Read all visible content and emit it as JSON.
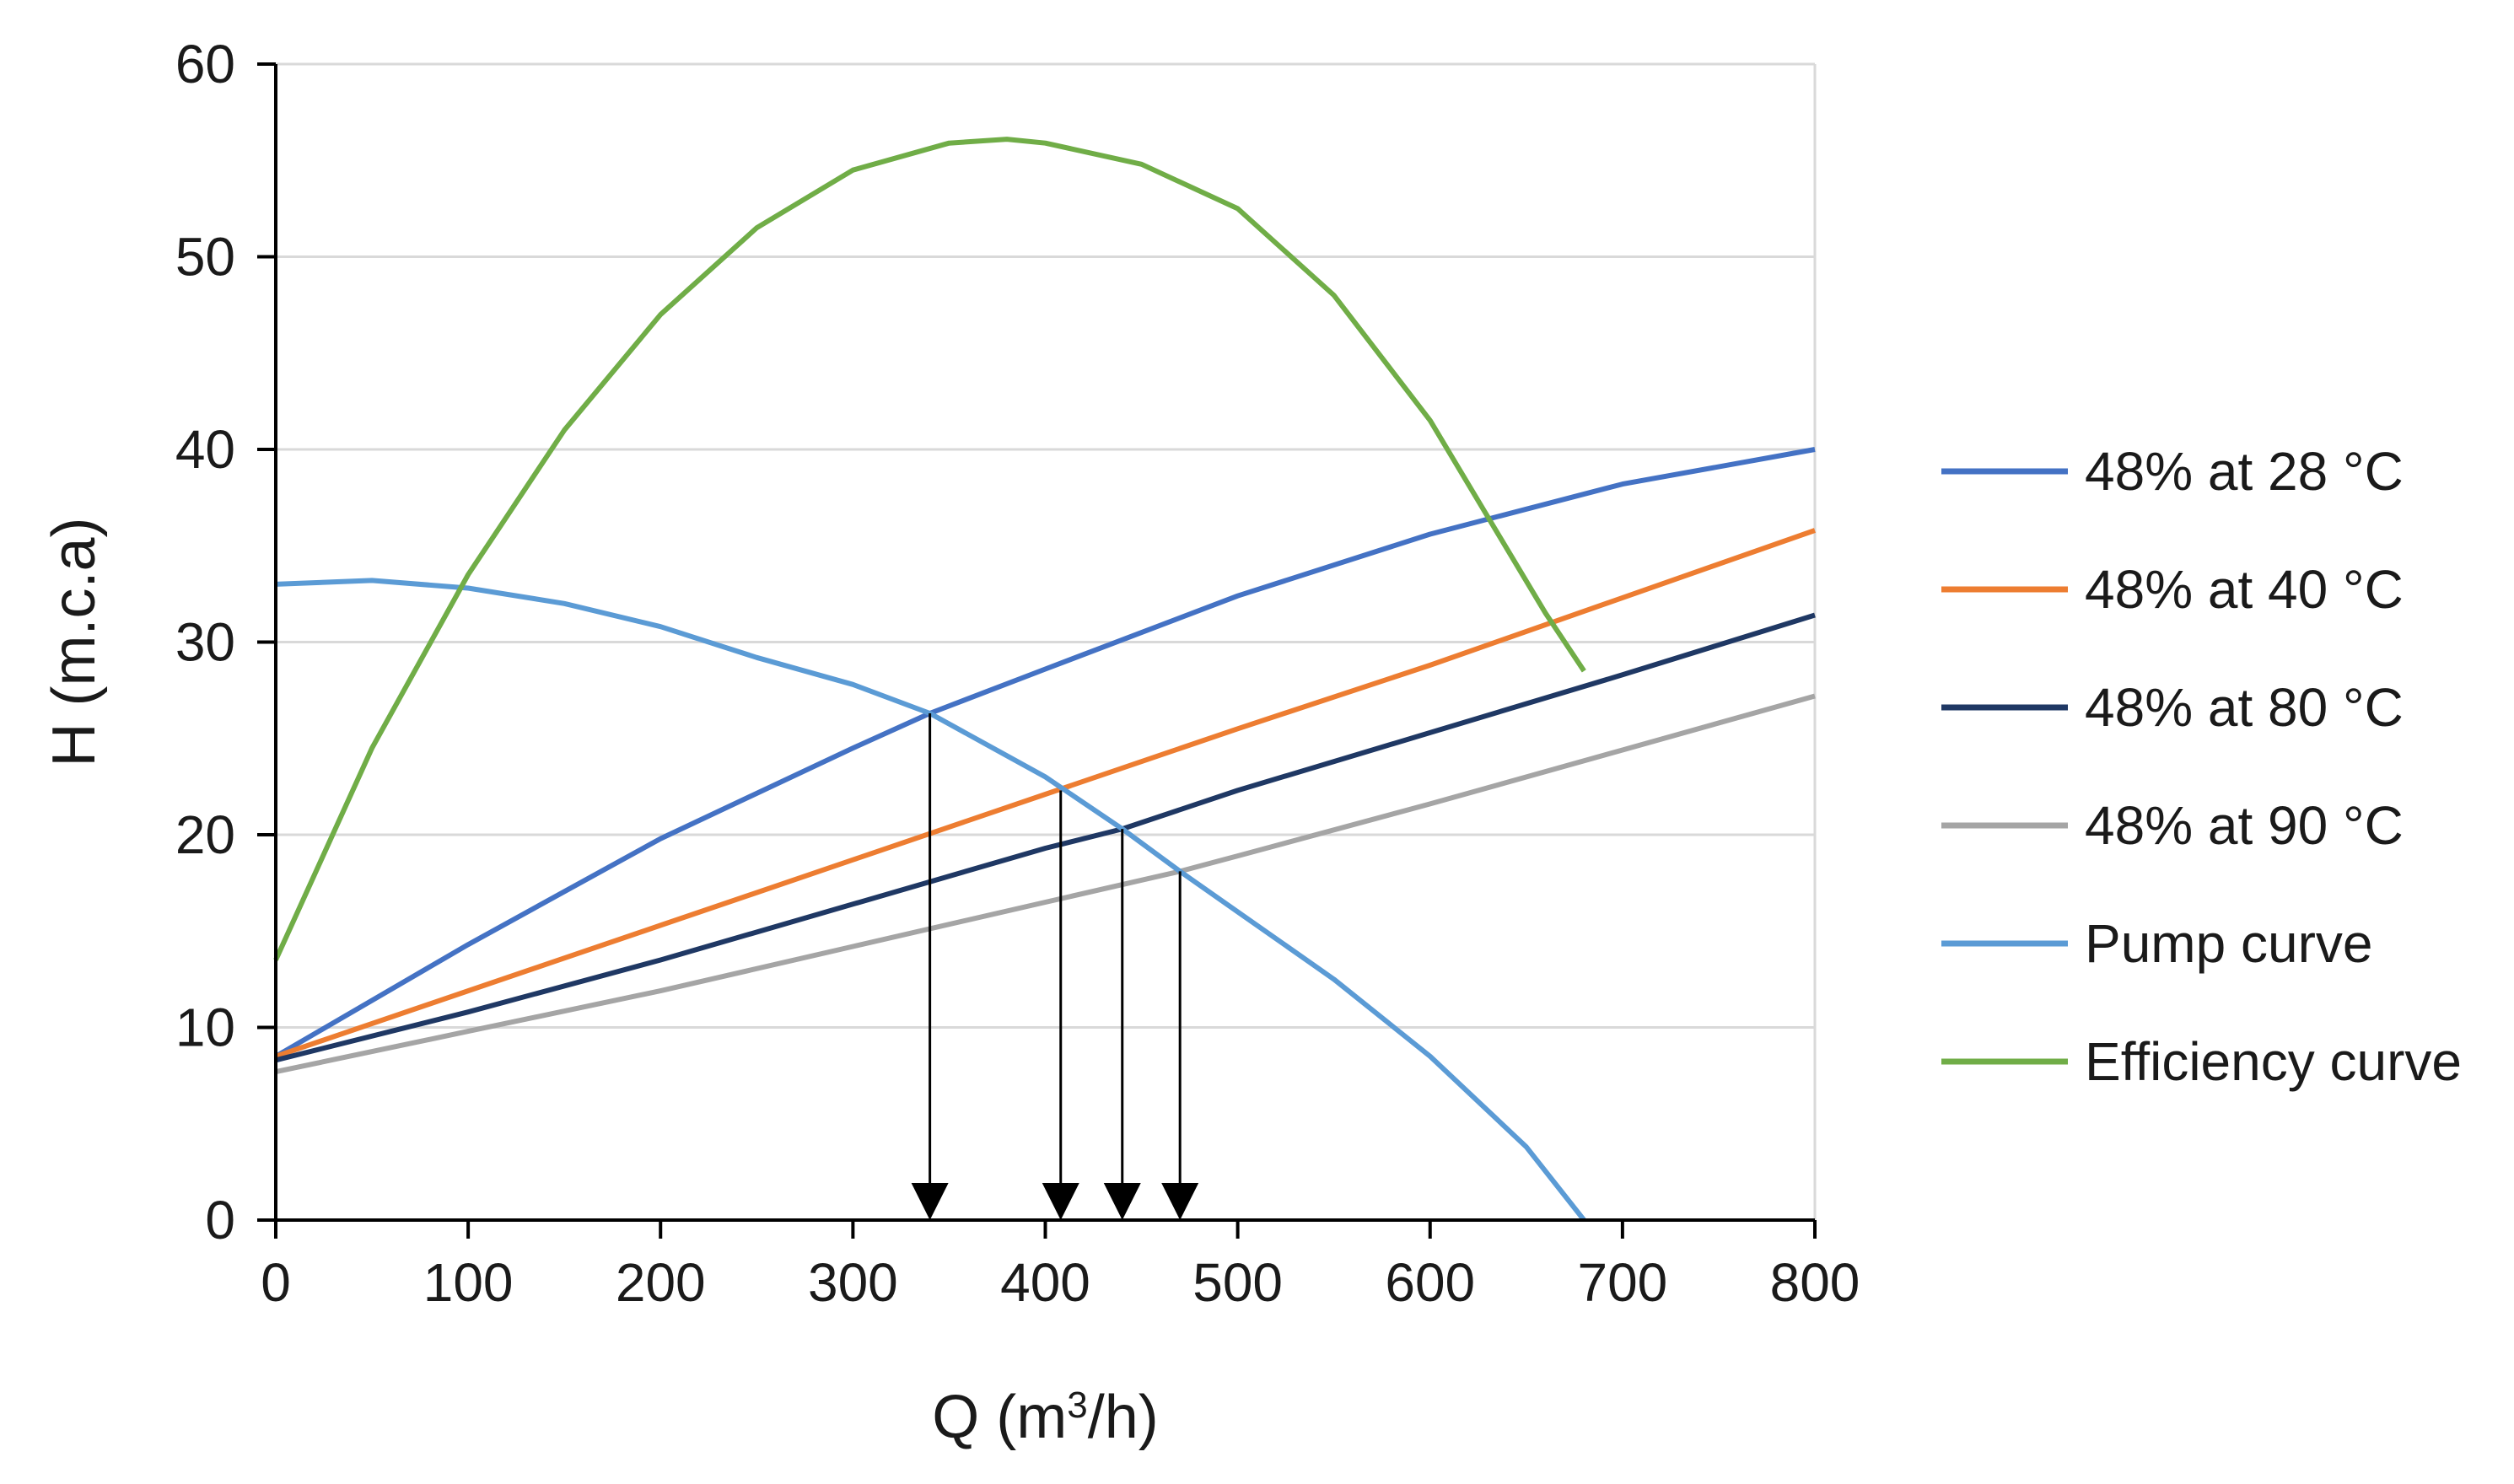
{
  "chart_data": {
    "type": "line",
    "title": "",
    "xlabel": "Q (m",
    "xlabel_sup": "3",
    "xlabel_end": "/h)",
    "ylabel": "H (m.c.a)",
    "xlim": [
      0,
      800
    ],
    "ylim": [
      0,
      60
    ],
    "xticks": [
      0,
      100,
      200,
      300,
      400,
      500,
      600,
      700,
      800
    ],
    "yticks": [
      0,
      10,
      20,
      30,
      40,
      50,
      60
    ],
    "grid": "horizontal",
    "legend_position": "right",
    "series": [
      {
        "name": "48% at 28 °C",
        "color": "#4472c4",
        "points": [
          [
            0,
            8.5
          ],
          [
            100,
            14.3
          ],
          [
            200,
            19.8
          ],
          [
            300,
            24.5
          ],
          [
            340,
            26.3
          ],
          [
            400,
            28.6
          ],
          [
            500,
            32.4
          ],
          [
            600,
            35.6
          ],
          [
            700,
            38.2
          ],
          [
            800,
            40.0
          ]
        ]
      },
      {
        "name": "48% at 40 °C",
        "color": "#ed7d31",
        "points": [
          [
            0,
            8.5
          ],
          [
            100,
            11.9
          ],
          [
            200,
            15.3
          ],
          [
            300,
            18.7
          ],
          [
            400,
            22.1
          ],
          [
            500,
            25.5
          ],
          [
            600,
            28.8
          ],
          [
            700,
            32.3
          ],
          [
            800,
            35.8
          ]
        ]
      },
      {
        "name": "48% at 80 °C",
        "color": "#1f3864",
        "points": [
          [
            0,
            8.3
          ],
          [
            100,
            10.8
          ],
          [
            200,
            13.5
          ],
          [
            300,
            16.4
          ],
          [
            400,
            19.3
          ],
          [
            440,
            20.3
          ],
          [
            500,
            22.3
          ],
          [
            600,
            25.3
          ],
          [
            700,
            28.3
          ],
          [
            800,
            31.4
          ]
        ]
      },
      {
        "name": "48% at 90 °C",
        "color": "#a5a5a5",
        "points": [
          [
            0,
            7.7
          ],
          [
            100,
            9.8
          ],
          [
            200,
            11.9
          ],
          [
            300,
            14.2
          ],
          [
            400,
            16.5
          ],
          [
            470,
            18.1
          ],
          [
            500,
            18.9
          ],
          [
            600,
            21.6
          ],
          [
            700,
            24.4
          ],
          [
            800,
            27.2
          ]
        ]
      },
      {
        "name": "Pump curve",
        "color": "#5b9bd5",
        "points": [
          [
            0,
            33.0
          ],
          [
            50,
            33.2
          ],
          [
            100,
            32.8
          ],
          [
            150,
            32.0
          ],
          [
            200,
            30.8
          ],
          [
            250,
            29.2
          ],
          [
            300,
            27.8
          ],
          [
            340,
            26.3
          ],
          [
            400,
            23.0
          ],
          [
            440,
            20.3
          ],
          [
            470,
            18.1
          ],
          [
            500,
            16.0
          ],
          [
            550,
            12.5
          ],
          [
            600,
            8.5
          ],
          [
            650,
            3.8
          ],
          [
            680,
            0.0
          ]
        ]
      },
      {
        "name": "Efficiency curve",
        "color": "#70ad47",
        "points": [
          [
            0,
            13.5
          ],
          [
            50,
            24.5
          ],
          [
            100,
            33.5
          ],
          [
            150,
            41.0
          ],
          [
            200,
            47.0
          ],
          [
            250,
            51.5
          ],
          [
            300,
            54.5
          ],
          [
            350,
            55.9
          ],
          [
            380,
            56.1
          ],
          [
            400,
            55.9
          ],
          [
            450,
            54.8
          ],
          [
            500,
            52.5
          ],
          [
            550,
            48.0
          ],
          [
            600,
            41.5
          ],
          [
            630,
            36.5
          ],
          [
            660,
            31.5
          ],
          [
            680,
            28.5
          ]
        ]
      }
    ],
    "annotations": [
      {
        "type": "arrow",
        "x": 340,
        "y_from": 26.3,
        "y_to": 0
      },
      {
        "type": "arrow",
        "x": 408,
        "y_from": 22.3,
        "y_to": 0
      },
      {
        "type": "arrow",
        "x": 440,
        "y_from": 20.3,
        "y_to": 0
      },
      {
        "type": "arrow",
        "x": 470,
        "y_from": 18.1,
        "y_to": 0
      }
    ]
  }
}
